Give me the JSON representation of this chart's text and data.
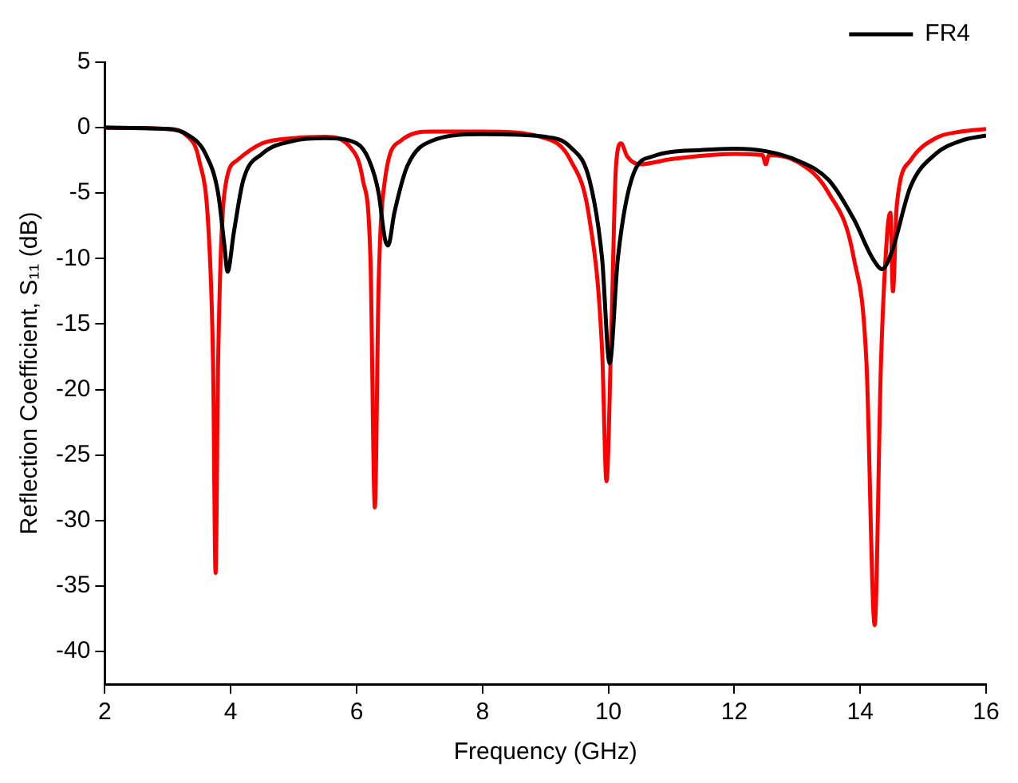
{
  "chart_data": {
    "type": "line",
    "xlabel": "Frequency (GHz)",
    "ylabel": "Reflection Coefficient, S₁₁ (dB)",
    "xlim": [
      2,
      16
    ],
    "xticks": [
      2,
      4,
      6,
      8,
      10,
      12,
      14,
      16
    ],
    "ylim": [
      -42.5,
      5
    ],
    "yticks": [
      -40,
      -35,
      -30,
      -25,
      -20,
      -15,
      -10,
      -5,
      0,
      5
    ],
    "grid": false,
    "legend": "top right",
    "marker": "none",
    "line_style": "solid",
    "series": [
      {
        "name": "FR4",
        "color": "#000000",
        "x": [
          2,
          3,
          3.3,
          3.6,
          3.8,
          3.9,
          3.95,
          4.05,
          4.2,
          4.5,
          5,
          5.5,
          6,
          6.2,
          6.35,
          6.45,
          6.5,
          6.6,
          6.8,
          7.2,
          8,
          9,
          9.4,
          9.7,
          9.9,
          10.02,
          10.15,
          10.4,
          10.7,
          11.5,
          12,
          12.5,
          13,
          13.5,
          13.9,
          14.2,
          14.35,
          14.5,
          14.8,
          15.2,
          15.6,
          16
        ],
        "values": [
          0,
          -0.1,
          -0.5,
          -2,
          -5,
          -9,
          -11,
          -8,
          -4,
          -2,
          -1,
          -0.8,
          -1.2,
          -2.5,
          -5,
          -8.5,
          -9,
          -6.5,
          -3,
          -1,
          -0.5,
          -0.7,
          -1.5,
          -4,
          -10,
          -18,
          -10,
          -3.5,
          -2.2,
          -1.7,
          -1.6,
          -1.8,
          -2.5,
          -4,
          -7,
          -10,
          -10.8,
          -9.5,
          -4.5,
          -2,
          -1,
          -0.6
        ]
      },
      {
        "color": "#ff0000",
        "x": [
          2,
          3,
          3.3,
          3.5,
          3.65,
          3.72,
          3.76,
          3.8,
          3.9,
          4.1,
          4.5,
          5,
          5.5,
          5.9,
          6.1,
          6.22,
          6.29,
          6.35,
          6.45,
          6.7,
          7.2,
          8,
          9,
          9.4,
          9.7,
          9.9,
          9.97,
          10.05,
          10.12,
          10.2,
          10.3,
          10.5,
          11,
          12,
          12.45,
          12.5,
          12.55,
          13,
          13.5,
          13.9,
          14.1,
          14.23,
          14.33,
          14.43,
          14.48,
          14.52,
          14.58,
          14.8,
          15.2,
          15.6,
          16
        ],
        "values": [
          0,
          -0.1,
          -0.6,
          -2.5,
          -8,
          -18,
          -34,
          -18,
          -5,
          -2.5,
          -1.2,
          -0.8,
          -0.7,
          -1.5,
          -4,
          -10,
          -29,
          -12,
          -4,
          -1,
          -0.3,
          -0.3,
          -0.8,
          -2.5,
          -7,
          -17,
          -27,
          -15,
          -3,
          -1.2,
          -2.2,
          -2.8,
          -2.4,
          -2,
          -2.1,
          -2.8,
          -2.1,
          -2.6,
          -5,
          -10,
          -18,
          -38,
          -18,
          -8,
          -6.5,
          -12.5,
          -6,
          -2.5,
          -0.8,
          -0.3,
          -0.1
        ]
      }
    ]
  }
}
